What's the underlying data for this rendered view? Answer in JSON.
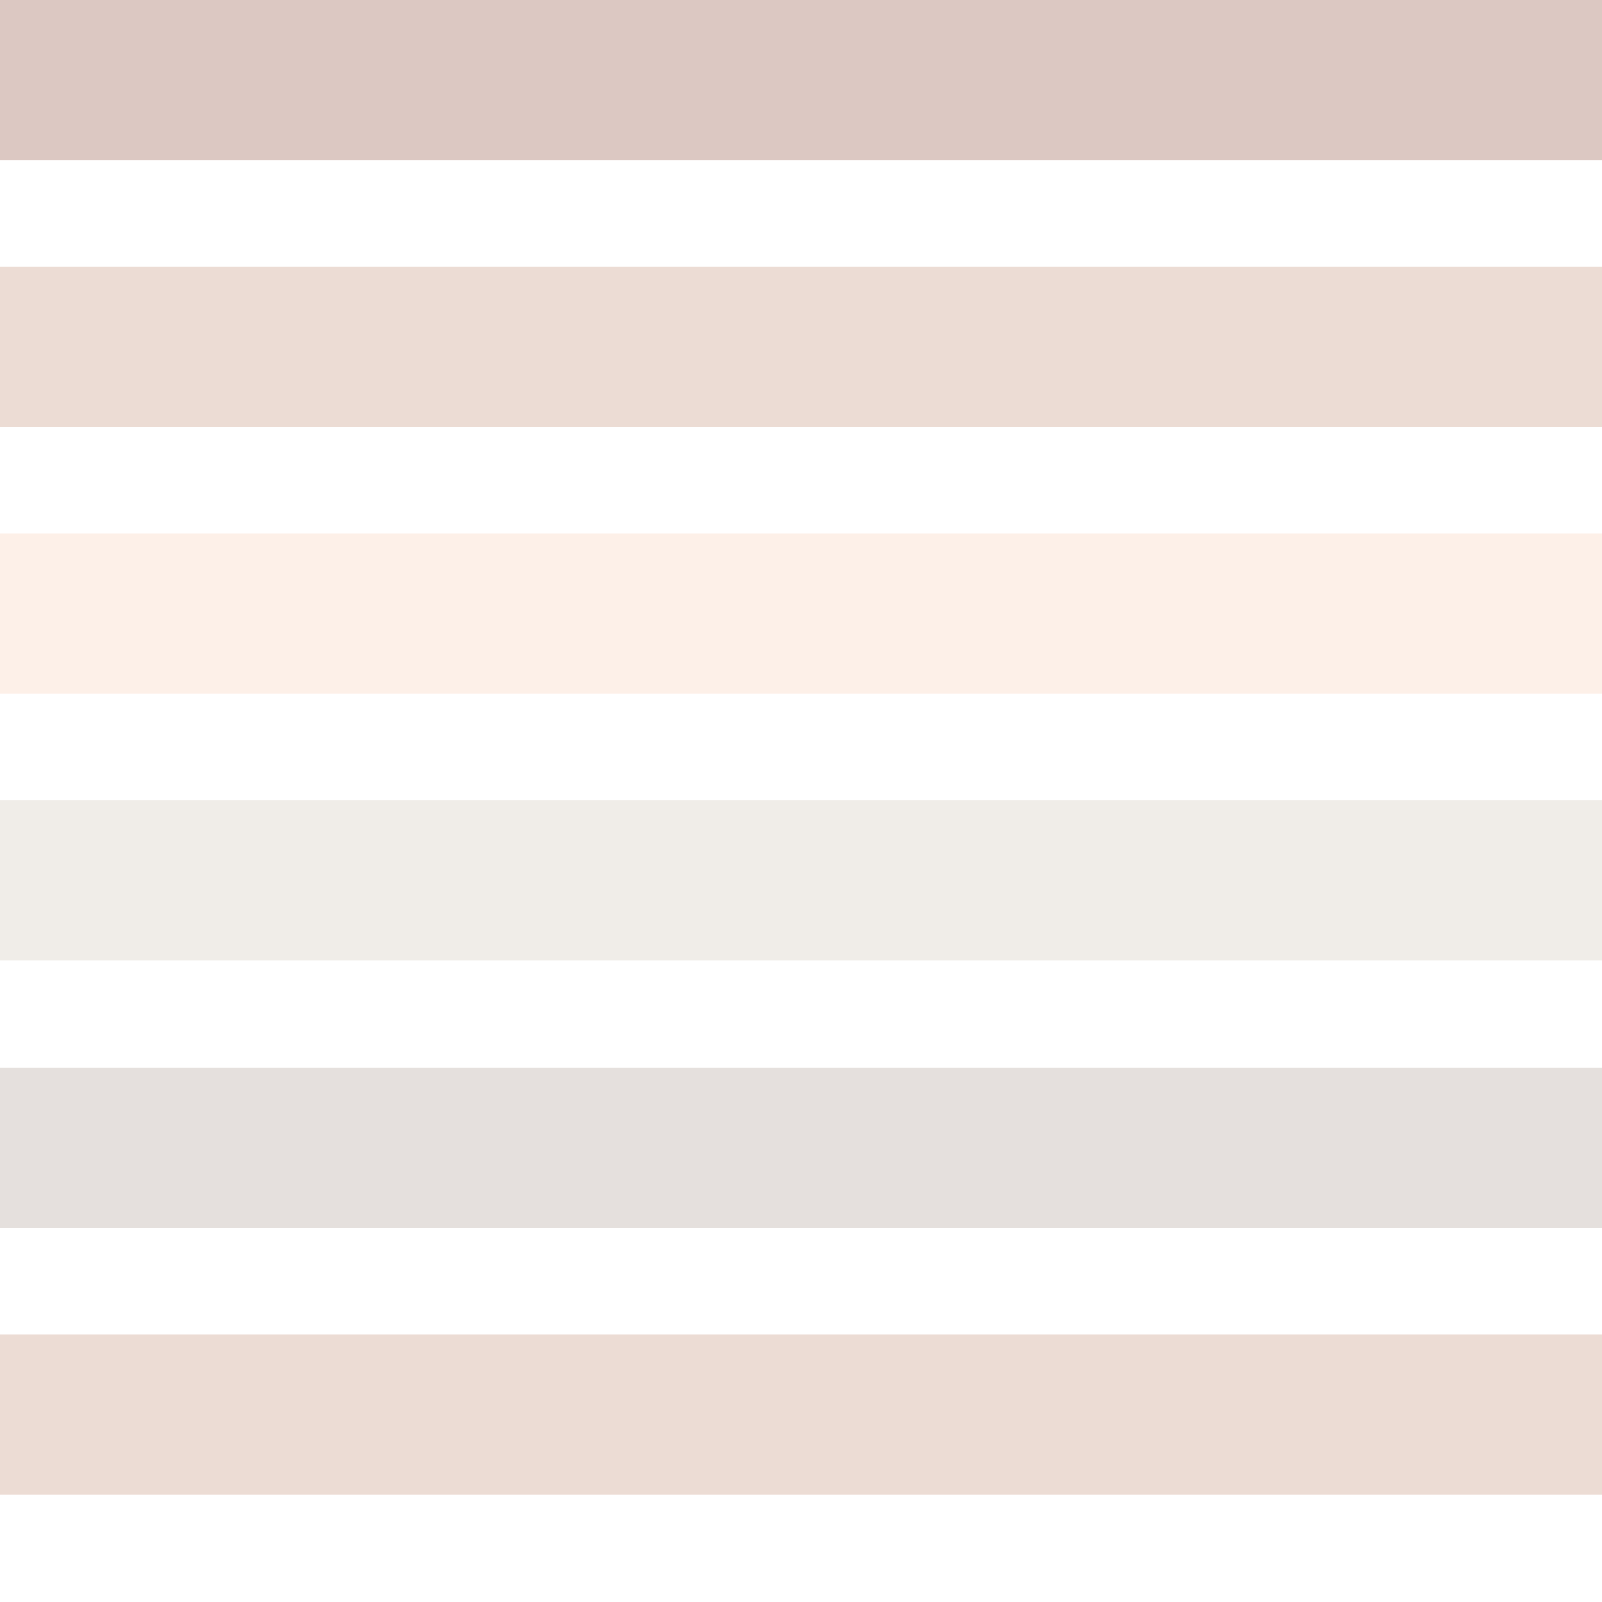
{
  "background_color": "#ffffff",
  "stripes": [
    {
      "color": "#dcc8c2"
    },
    {
      "color": "#ecdcd4"
    },
    {
      "color": "#fdf0e8"
    },
    {
      "color": "#f0ede8"
    },
    {
      "color": "#e5e0dd"
    },
    {
      "color": "#ecdcd4"
    }
  ]
}
